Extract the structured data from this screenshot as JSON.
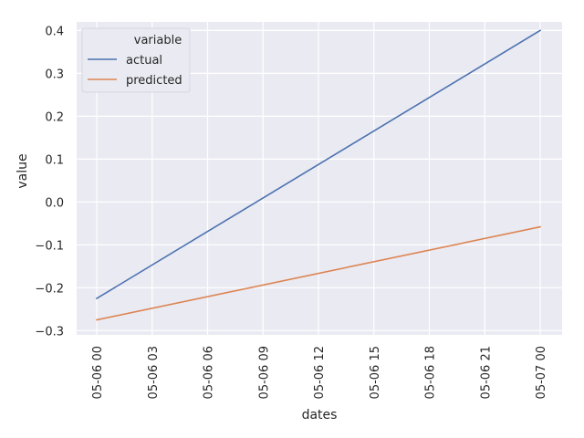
{
  "chart_data": {
    "type": "line",
    "title": "",
    "xlabel": "dates",
    "ylabel": "value",
    "x": [
      "2021-05-06 00:00",
      "2021-05-07 00:00"
    ],
    "x_tick_labels": [
      "05-06 00",
      "05-06 03",
      "05-06 06",
      "05-06 09",
      "05-06 12",
      "05-06 15",
      "05-06 18",
      "05-06 21",
      "05-07 00"
    ],
    "y_ticks": [
      -0.3,
      -0.2,
      -0.1,
      0.0,
      0.1,
      0.2,
      0.3,
      0.4
    ],
    "y_tick_labels": [
      "−0.3",
      "−0.2",
      "−0.1",
      "0.0",
      "0.1",
      "0.2",
      "0.3",
      "0.4"
    ],
    "ylim": [
      -0.31,
      0.42
    ],
    "grid": true,
    "legend": {
      "title": "variable",
      "placement": "top-left"
    },
    "series": [
      {
        "name": "actual",
        "color": "#4c72b0",
        "values": [
          -0.225,
          0.4
        ]
      },
      {
        "name": "predicted",
        "color": "#dd8452",
        "values": [
          -0.275,
          -0.058
        ]
      }
    ]
  },
  "style": {
    "plot_background": "#eaeaf2",
    "grid_color": "#ffffff"
  }
}
